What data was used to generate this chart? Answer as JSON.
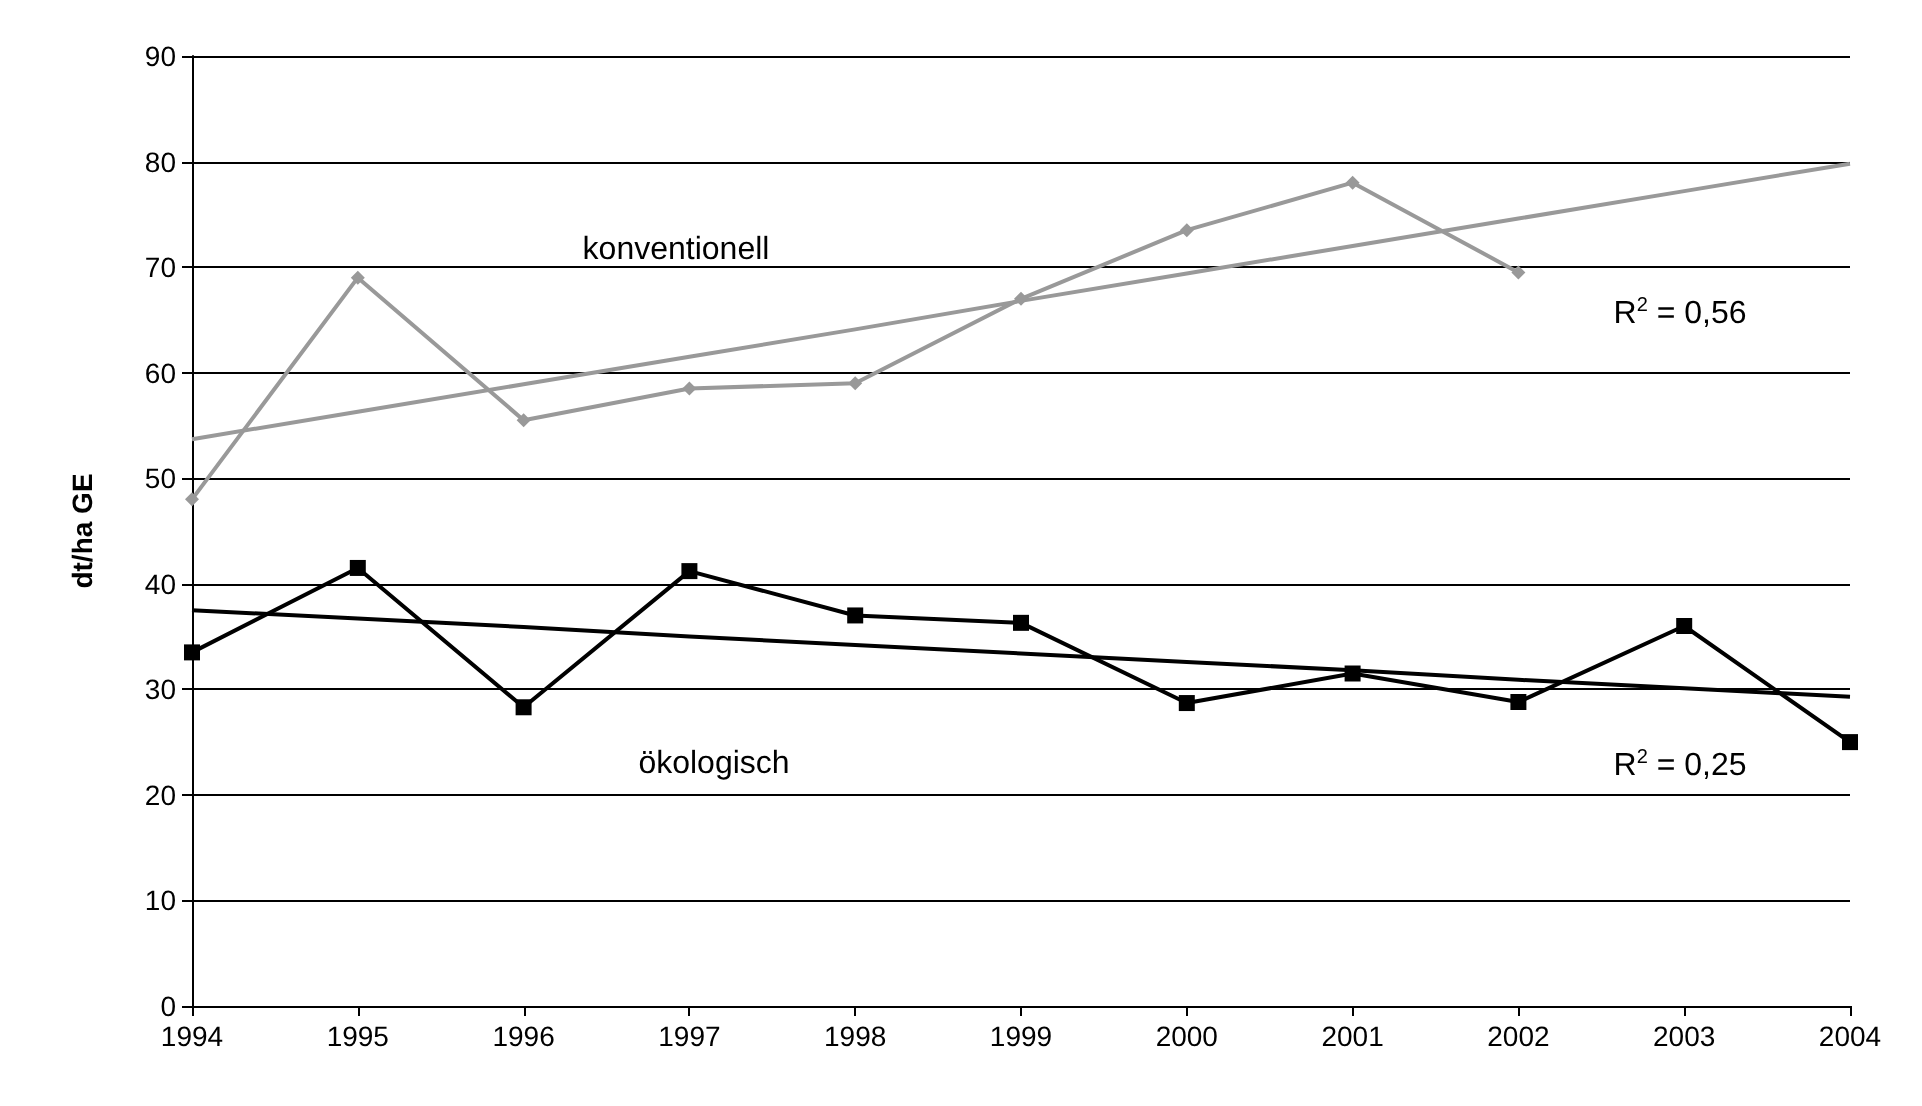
{
  "chart_data": {
    "type": "line",
    "ylabel": "dt/ha GE",
    "categories": [
      "1994",
      "1995",
      "1996",
      "1997",
      "1998",
      "1999",
      "2000",
      "2001",
      "2002",
      "2003",
      "2004"
    ],
    "series": [
      {
        "color": "#999999",
        "marker": "diamond",
        "values": [
          48,
          69,
          55.5,
          58.5,
          59,
          67,
          73.5,
          78,
          69.5,
          null,
          null
        ]
      },
      {
        "color": "#000000",
        "marker": "square",
        "values": [
          33.5,
          41.5,
          28.3,
          41.2,
          37,
          36.3,
          28.7,
          31.5,
          28.8,
          36,
          25
        ]
      },
      {
        "color": "#999999",
        "marker": "none",
        "values": [
          53.7,
          56.3,
          58.9,
          61.5,
          64.1,
          66.8,
          69.4,
          72,
          74.6,
          77.2,
          79.8
        ]
      },
      {
        "color": "#000000",
        "marker": "none",
        "values": [
          37.5,
          36.7,
          35.9,
          35,
          34.2,
          33.4,
          32.6,
          31.8,
          30.9,
          30.1,
          29.3
        ]
      }
    ],
    "ylim": [
      0,
      90
    ],
    "yticks": [
      0,
      10,
      20,
      30,
      40,
      50,
      60,
      70,
      80,
      90
    ],
    "grid": "y",
    "annotations": [
      "konventionell",
      "ökologisch",
      "R$^{2}$ = 0,56",
      "R$^{2}$ = 0,25"
    ]
  }
}
